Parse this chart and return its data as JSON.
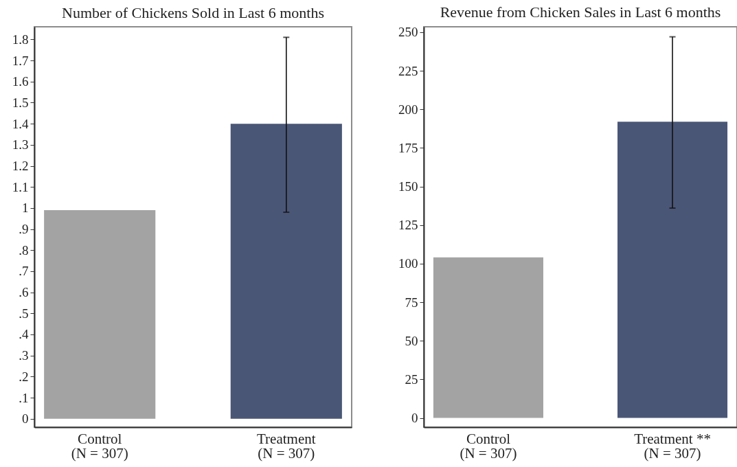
{
  "chart_data": [
    {
      "type": "bar",
      "title": "Number of Chickens Sold in Last 6 months",
      "categories": [
        "Control\n(N = 307)",
        "Treatment\n(N = 307)"
      ],
      "values": [
        0.99,
        1.4
      ],
      "colors": [
        "#a3a3a3",
        "#4a5676"
      ],
      "errors": [
        null,
        [
          0.98,
          1.81
        ]
      ],
      "ylim": [
        -0.04,
        1.86
      ],
      "yticks": [
        0,
        {
          "value": 0.1,
          "label": ".1"
        },
        {
          "value": 0.2,
          "label": ".2"
        },
        {
          "value": 0.3,
          "label": ".3"
        },
        {
          "value": 0.4,
          "label": ".4"
        },
        {
          "value": 0.5,
          "label": ".5"
        },
        {
          "value": 0.6,
          "label": ".6"
        },
        {
          "value": 0.7,
          "label": ".7"
        },
        {
          "value": 0.8,
          "label": ".8"
        },
        {
          "value": 0.9,
          "label": ".9"
        },
        1,
        1.1,
        1.2,
        1.3,
        1.4,
        1.5,
        1.6,
        1.7,
        1.8
      ]
    },
    {
      "type": "bar",
      "title": "Revenue from Chicken Sales in Last 6 months",
      "categories": [
        "Control\n(N = 307)",
        "Treatment **\n(N = 307)"
      ],
      "values": [
        104,
        192
      ],
      "colors": [
        "#a3a3a3",
        "#4a5676"
      ],
      "errors": [
        null,
        [
          136,
          247
        ]
      ],
      "ylim": [
        -6,
        253.5
      ],
      "yticks": [
        0,
        25,
        50,
        75,
        100,
        125,
        150,
        175,
        200,
        225,
        250
      ]
    }
  ]
}
